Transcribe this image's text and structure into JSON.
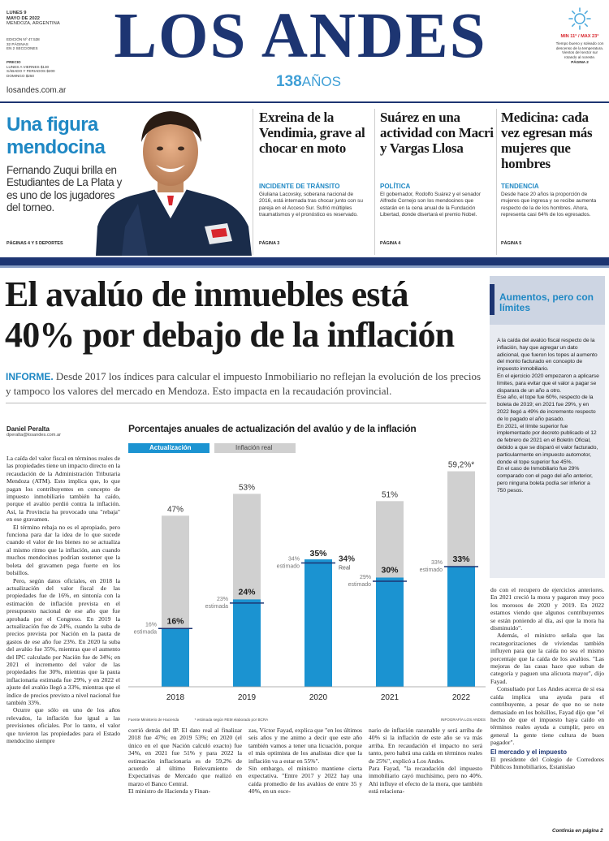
{
  "masthead": {
    "date_line1": "LUNES 9",
    "date_line2": "MAYO DE 2022",
    "location": "MENDOZA, ARGENTINA",
    "edition": [
      "EDICIÓN Nº 47.538",
      "32 PÁGINAS",
      "EN 2 SECCIONES"
    ],
    "price_title": "PRECIO",
    "prices": [
      "LUNES A VIERNES $130",
      "SÁBADO Y FERIADOS $200",
      "DOMINGO $250"
    ],
    "title": "LOS ANDES",
    "anniversary_num": "138",
    "anniversary_word": "AÑOS",
    "website": "losandes.com.ar",
    "weather_temp": "MIN 11° / MAX 23°",
    "weather_text": "Tiempo bueno y soleado con descenso de la temperatura. Vientos del sector sur rotando al noreste.",
    "weather_ref": "PÁGINA 2"
  },
  "teasers": {
    "sports": {
      "title": "Una figura mendocina",
      "body": "Fernando Zuqui brilla en Estudiantes de La Plata y es uno de los jugadores del torneo.",
      "pages": "PÁGINAS 4 Y 5 DEPORTES"
    },
    "items": [
      {
        "title": "Exreina de la Vendimia, grave al chocar en moto",
        "kicker": "INCIDENTE DE TRÁNSITO",
        "body": "Giuliana Lacovsky, soberana nacional de 2016, está internada tras chocar junto con su pareja en el Acceso Sur. Sufrió múltiples traumatismos y el pronóstico es reservado.",
        "page": "PÁGINA 3"
      },
      {
        "title": "Suárez en una actividad con Macri y Vargas Llosa",
        "kicker": "POLÍTICA",
        "body": "El gobernador, Rodolfo Suárez y el senador Alfredo Cornejo son los mendocinos que estarán en la cena anual de la Fundación Libertad, donde disertará el premio Nobel.",
        "page": "PÁGINA 4"
      },
      {
        "title": "Medicina: cada vez egresan más mujeres que hombres",
        "kicker": "TENDENCIA",
        "body": "Desde hace 20 años la proporción de mujeres que ingresa y se recibe aumenta respecto de la de los hombres. Ahora, representa casi 64% de los egresados.",
        "page": "PÁGINA 5"
      }
    ]
  },
  "lead": {
    "headline_line1": "El avalúo de inmuebles está",
    "headline_line2": "40% por debajo de la inflación",
    "deck_label": "INFORME.",
    "deck": "Desde 2017 los índices para calcular el impuesto Inmobiliario no reflejan la evolución de los precios y tampoco los valores del mercado en Mendoza. Esto impacta en la recaudación provincial.",
    "author": "Daniel Peralta",
    "email": "dperalta@losandes.com.ar",
    "col1": [
      "La caída del valor fiscal en términos reales de las propiedades tiene un impacto directo en la recaudación de la Administración Tributaria Mendoza (ATM). Esto implica que, lo que pagan los contribuyentes en concepto de impuesto inmobiliario también ha caído, porque el avalúo perdió contra la inflación. Así, la Provincia ha provocado una \"rebaja\" en ese gravamen.",
      "El término rebaja no es el apropiado, pero funciona para dar la idea de lo que sucede cuando el valor de los bienes no se actualiza al mismo ritmo que la inflación, aun cuando muchos mendocinos podrían sostener que la boleta del gravamen pega fuerte en los bolsillos.",
      "Pero, según datos oficiales, en 2018 la actualización del valor fiscal de las propiedades fue de 16%, en sintonía con la estimación de inflación prevista en el presupuesto nacional de ese año que fue aprobada por el Congreso. En 2019 la actualización fue de 24%, cuando la suba de precios prevista por Nación en la pauta de gastos de ese año fue 23%. En 2020 la suba del avalúo fue 35%, mientras que el aumento del IPC calculado por Nación fue de 34%; en 2021 el incremento del valor de las propiedades fue 30%, mientras que la pauta inflacionaria estimada fue 29%, y en 2022 el ajuste del avalúo llegó a 33%, mientras que el índice de precios previsto a nivel nacional fue también 33%.",
      "Ocurre que sólo en uno de los años relevados, la inflación fue igual a las previsiones oficiales. Por lo tanto, el valor que tuvieron las propiedades para el Estado mendocino siempre"
    ],
    "bottom_cols": [
      "corrió detrás del IP. El dato real al finalizar 2018 fue 47%; en 2019 53%; en 2020 (el único en el que Nación calculó exacto) fue 34%, en 2021 fue 51% y para 2022 la estimación inflacionaria es de 59,2% de acuerdo al último Relevamiento de Expectativas de Mercado que realizó en marzo el Banco Central.\nEl ministro de Hacienda y Finan-",
      "zas, Víctor Fayad, explica que \"en los últimos seis años y me animo a decir que este año también vamos a tener una licuación, porque el más optimista de los analistas dice que la inflación va a estar en 55%\".\nSin embargo, el ministro mantiene cierta expectativa. \"Entre 2017 y 2022 hay una caída promedio de los avalúos de entre 35 y 40%, en un esce-",
      "nario de inflación razonable y será arriba de 40% si la inflación de este año se va más arriba. En recaudación el impacto no será tanto, pero habrá una caída en términos reales de 25%\", explicó a Los Andes.\nPara Fayad, \"la recaudación del impuesto inmobiliario cayó muchísimo, pero no 40%. Ahí influye el efecto de la mora, que también está relaciona-"
    ],
    "right_col": [
      "do con el recupero de ejercicios anteriores. En 2021 creció la mora y pagaron muy poco los morosos de 2020 y 2019. En 2022 estamos viendo que algunos contribuyentes se están poniendo al día, así que la mora ha disminuido\".",
      "Además, el ministro señala que las recategorizaciones de viviendas también influyen para que la caída no sea el mismo porcentaje que la caída de los avalúos. \"Las mejoras de las casas hace que suban de categoría y paguen una alícuota mayor\", dijo Fayad.",
      "Consultado por Los Andes acerca de si esa caída implica una ayuda para el contribuyente, a pesar de que no se note demasiado en los bolsillos, Fayad dijo que \"el hecho de que el impuesto haya caído en términos reales ayuda a cumplir, pero en general la gente tiene cultura de buen pagador\"."
    ],
    "subhead": "El mercado y el impuesto",
    "subhead_body": "El presidente del Colegio de Corredores Públicos Inmobiliarios, Estanislao",
    "continues": "Continúa en página 2"
  },
  "sidebar": {
    "title": "Aumentos, pero con límites",
    "paragraphs": [
      "A la caída del avalúo fiscal respecto de la inflación, hay que agregar un dato adicional, que fueron los topes al aumento del monto facturado en concepto de impuesto inmobiliario.",
      "En el ejercicio 2020 empezaron a aplicarse límites, para evitar que el valor a pagar se disparara de un año a otro.",
      "Ese año, el tope fue 60%, respecto de la boleta de 2019; en 2021 fue 29%, y en 2022 llegó a 49% de incremento respecto de lo pagado el año pasado.",
      "En 2021, el límite superior fue implementado por decreto publicado el 12 de febrero de 2021 en el Boletín Oficial, debido a que se disparó el valor facturado, particularmente en impuesto automotor, donde el tope superior fue 45%.",
      "En el caso de Inmobiliario fue 29% comparado con el pago del año anterior, pero ninguna boleta podía ser inferior a 750 pesos."
    ]
  },
  "chart_data": {
    "type": "bar",
    "title": "Porcentajes anuales de actualización del avalúo y de la inflación",
    "legend": [
      "Actualización",
      "Inflación real"
    ],
    "categories": [
      "2018",
      "2019",
      "2020",
      "2021",
      "2022"
    ],
    "series": [
      {
        "name": "Actualización",
        "values": [
          16,
          24,
          35,
          30,
          33
        ]
      },
      {
        "name": "Inflación real",
        "values": [
          47,
          53,
          34,
          51,
          59.2
        ]
      }
    ],
    "value_labels": {
      "actualizacion": [
        "16%",
        "24%",
        "35%",
        "30%",
        "33%"
      ],
      "inflacion": [
        "47%",
        "53%",
        "",
        "51%",
        "59,2%*"
      ]
    },
    "estimates": [
      {
        "value": "16%",
        "label": "estimada"
      },
      {
        "value": "23%",
        "label": "estimada"
      },
      {
        "value": "34%",
        "label": "estimado"
      },
      {
        "value": "29%",
        "label": "estimado"
      },
      {
        "value": "33%",
        "label": "estimado"
      }
    ],
    "real_2020": {
      "value": "34%",
      "label": "Real"
    },
    "ylim": [
      0,
      62
    ],
    "source": "Fuente Ministerio de Hacienda",
    "footnote": "* estimada según REM elaborado por BCRA",
    "credit": "INFOGRAFÍA LOS ANDES",
    "colors": {
      "actualizacion": "#1b93d1",
      "inflacion": "#d0d0d0",
      "marker": "#1d3572"
    }
  }
}
